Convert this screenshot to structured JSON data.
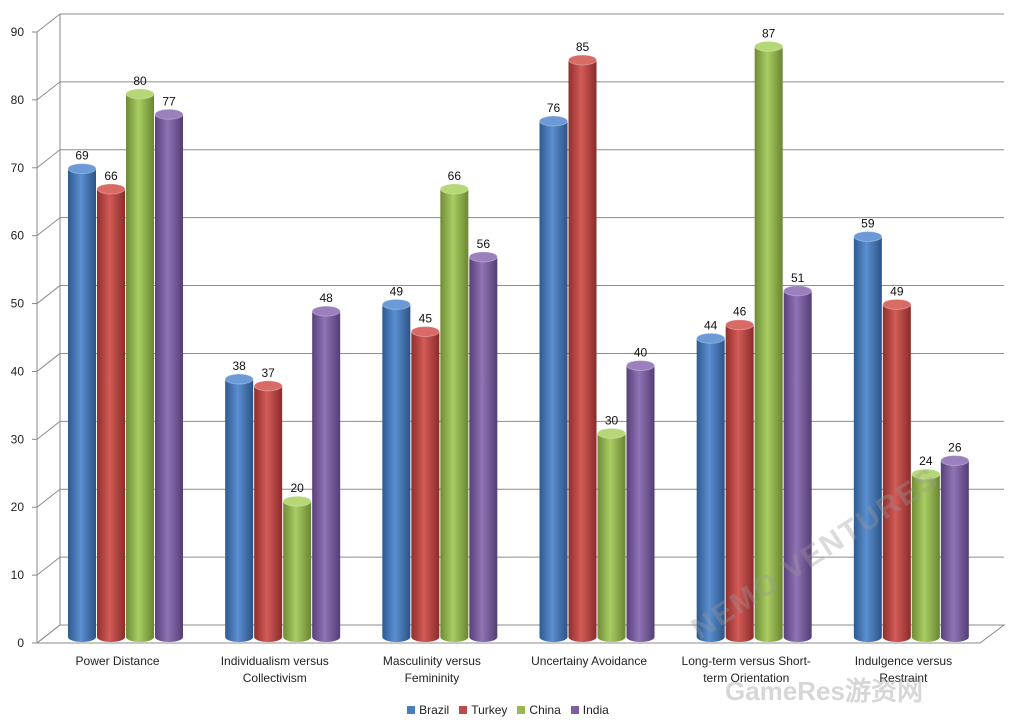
{
  "chart_data": {
    "type": "bar",
    "style": "3d-cylinder",
    "categories": [
      [
        "Power Distance"
      ],
      [
        "Individualism versus",
        "Collectivism"
      ],
      [
        "Masculinity versus",
        "Femininity"
      ],
      [
        "Uncertainy Avoidance"
      ],
      [
        "Long-term versus Short-",
        "term Orientation"
      ],
      [
        "Indulgence versus",
        "Restraint"
      ]
    ],
    "series": [
      {
        "name": "Brazil",
        "color": "#4a7ebb",
        "values": [
          69,
          38,
          49,
          76,
          44,
          59
        ]
      },
      {
        "name": "Turkey",
        "color": "#be4b48",
        "values": [
          66,
          37,
          45,
          85,
          46,
          49
        ]
      },
      {
        "name": "China",
        "color": "#98b954",
        "values": [
          80,
          20,
          66,
          30,
          87,
          24
        ]
      },
      {
        "name": "India",
        "color": "#7d60a0",
        "values": [
          77,
          48,
          56,
          40,
          51,
          26
        ]
      }
    ],
    "ylim": [
      0,
      90
    ],
    "yticks": [
      0,
      10,
      20,
      30,
      40,
      50,
      60,
      70,
      80,
      90
    ],
    "grid": true,
    "legend_position": "bottom",
    "watermark": [
      "NEMO VENTURES",
      "GameRes游资网"
    ]
  }
}
